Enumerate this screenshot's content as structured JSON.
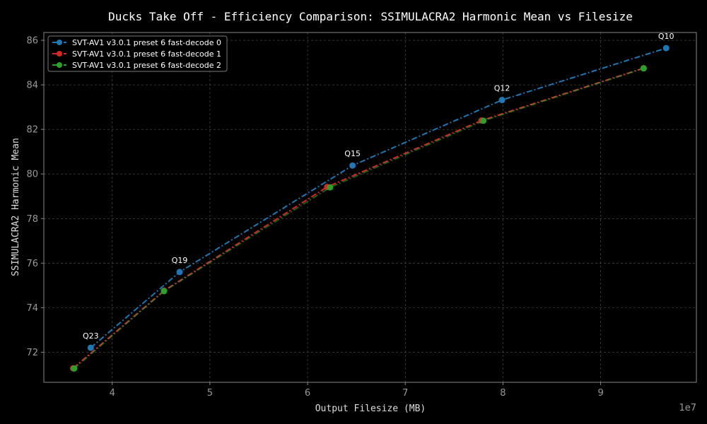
{
  "chart_data": {
    "type": "line",
    "title": "Ducks Take Off - Efficiency Comparison: SSIMULACRA2 Harmonic Mean vs Filesize",
    "xlabel": "Output Filesize (MB)",
    "ylabel": "SSIMULACRA2 Harmonic Mean",
    "x_offset_label": "1e7",
    "xlim": [
      33000000,
      99800000
    ],
    "ylim": [
      70.65,
      86.35
    ],
    "xticks": [
      40000000,
      50000000,
      60000000,
      70000000,
      80000000,
      90000000
    ],
    "xtick_labels": [
      "4",
      "5",
      "6",
      "7",
      "8",
      "9"
    ],
    "yticks": [
      72,
      74,
      76,
      78,
      80,
      82,
      84,
      86
    ],
    "ytick_labels": [
      "72",
      "74",
      "76",
      "78",
      "80",
      "82",
      "84",
      "86"
    ],
    "grid": true,
    "legend_position": "top-left",
    "series": [
      {
        "name": "SVT-AV1 v3.0.1 preset 6 fast-decode 0",
        "color": "#1f77b4",
        "x": [
          37800000,
          46900000,
          64600000,
          79900000,
          96700000
        ],
        "y": [
          72.2,
          75.6,
          80.38,
          83.32,
          85.65
        ]
      },
      {
        "name": "SVT-AV1 v3.0.1 preset 6 fast-decode 1",
        "color": "#d62728",
        "x": [
          36000000,
          45300000,
          62000000,
          77800000,
          94400000
        ],
        "y": [
          71.28,
          74.76,
          79.42,
          82.4,
          84.75
        ]
      },
      {
        "name": "SVT-AV1 v3.0.1 preset 6 fast-decode 2",
        "color": "#2ca02c",
        "x": [
          36100000,
          45300000,
          62300000,
          78000000,
          94400000
        ],
        "y": [
          71.27,
          74.74,
          79.4,
          82.39,
          84.74
        ]
      }
    ],
    "annotations": [
      {
        "text": "Q23",
        "x": 37800000,
        "y": 72.2
      },
      {
        "text": "Q19",
        "x": 46900000,
        "y": 75.6
      },
      {
        "text": "Q15",
        "x": 64600000,
        "y": 80.38
      },
      {
        "text": "Q12",
        "x": 79900000,
        "y": 83.32
      },
      {
        "text": "Q10",
        "x": 96700000,
        "y": 85.65
      }
    ]
  }
}
